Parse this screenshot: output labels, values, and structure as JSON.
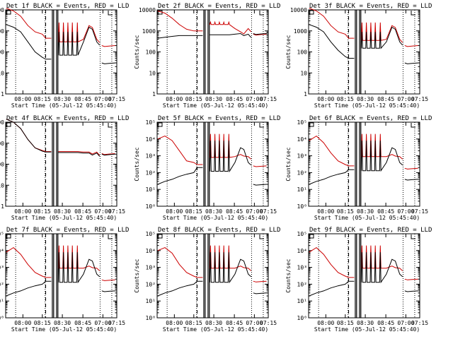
{
  "figure": {
    "background": "#ffffff",
    "colors": {
      "events": "#000000",
      "lld": "#cc0000",
      "axis": "#000000"
    },
    "x_tick_labels": [
      "08:00",
      "08:15",
      "08:30",
      "08:45",
      "07:00",
      "07:15"
    ],
    "xlabel": "Start Time (05-Jul-12 05:45:40)",
    "ylabel": "Counts/sec"
  },
  "chart_data": [
    {
      "type": "line",
      "title": "Det 1f BLACK = Events, RED = LLD",
      "y_axis": "A",
      "ylim": [
        1,
        10000
      ],
      "log_y": true,
      "yticks": [
        "1",
        "10",
        "100",
        "1000",
        "10000"
      ],
      "events_profile": {
        "pre": [
          2000,
          1500,
          900,
          300,
          100,
          55
        ],
        "dip": 45,
        "base": 70,
        "spike": 900,
        "mid": 300,
        "hump": 1500,
        "tail": 30
      },
      "lld_profile": {
        "pre": [
          12000,
          9000,
          5000,
          1800,
          900,
          700
        ],
        "dip": 450,
        "base": 300,
        "spike": 2500,
        "mid": 400,
        "hump": 1800,
        "tail": 200
      }
    },
    {
      "type": "line",
      "title": "Det 2f BLACK = Events, RED = LLD",
      "y_axis": "A",
      "ylim": [
        1,
        10000
      ],
      "log_y": true,
      "yticks": [
        "1",
        "10",
        "100",
        "1000",
        "10000"
      ],
      "events_profile": {
        "pre": [
          450,
          500,
          550,
          600,
          600,
          600
        ],
        "dip": 600,
        "base": 650,
        "spike": 650,
        "mid": 700,
        "hump": 750,
        "tail": 750
      },
      "lld_profile": {
        "pre": [
          9000,
          7000,
          4000,
          2000,
          1200,
          1000
        ],
        "dip": 1000,
        "base": 2000,
        "spike": 2600,
        "mid": 1300,
        "hump": 900,
        "tail": 700
      }
    },
    {
      "type": "line",
      "title": "Det 3f BLACK = Events, RED = LLD",
      "y_axis": "A",
      "ylim": [
        1,
        10000
      ],
      "log_y": true,
      "yticks": [
        "1",
        "10",
        "100",
        "1000",
        "10000"
      ],
      "events_profile": {
        "pre": [
          2000,
          1500,
          900,
          300,
          120,
          60
        ],
        "dip": 50,
        "base": 150,
        "spike": 900,
        "mid": 300,
        "hump": 1500,
        "tail": 30
      },
      "lld_profile": {
        "pre": [
          12000,
          9000,
          5000,
          1800,
          900,
          700
        ],
        "dip": 450,
        "base": 350,
        "spike": 2500,
        "mid": 400,
        "hump": 1800,
        "tail": 200
      }
    },
    {
      "type": "line",
      "title": "Det 4f BLACK = Events, RED = LLD",
      "y_axis": "A",
      "ylim": [
        1,
        10000
      ],
      "log_y": true,
      "yticks": [
        "1",
        "10",
        "100",
        "1000",
        "10000"
      ],
      "events_profile": {
        "pre": [
          14000,
          10000,
          5000,
          1500,
          600,
          420
        ],
        "dip": 380,
        "base": 360,
        "spike": 360,
        "mid": 340,
        "hump": 340,
        "tail": 300
      },
      "lld_profile": {
        "pre": [
          14000,
          10000,
          5000,
          1500,
          600,
          450
        ],
        "dip": 400,
        "base": 400,
        "spike": 400,
        "mid": 380,
        "hump": 380,
        "tail": 320
      }
    },
    {
      "type": "line",
      "title": "Det 5f BLACK = Events, RED = LLD",
      "y_axis": "B",
      "ylim": [
        1,
        100000
      ],
      "log_y": true,
      "yticks": [
        "10⁰",
        "10¹",
        "10²",
        "10³",
        "10⁴",
        "10⁵"
      ],
      "events_profile": {
        "pre": [
          20,
          30,
          40,
          60,
          80,
          100
        ],
        "dip": 200,
        "base": 120,
        "spike": 8000,
        "mid": 400,
        "hump": 3000,
        "tail": 20
      },
      "lld_profile": {
        "pre": [
          10000,
          15000,
          8000,
          2000,
          500,
          400
        ],
        "dip": 300,
        "base": 800,
        "spike": 20000,
        "mid": 900,
        "hump": 1200,
        "tail": 250
      }
    },
    {
      "type": "line",
      "title": "Det 6f BLACK = Events, RED = LLD",
      "y_axis": "B",
      "ylim": [
        1,
        100000
      ],
      "log_y": true,
      "yticks": [
        "10⁰",
        "10¹",
        "10²",
        "10³",
        "10⁴",
        "10⁵"
      ],
      "events_profile": {
        "pre": [
          20,
          30,
          40,
          60,
          80,
          100
        ],
        "dip": 150,
        "base": 130,
        "spike": 8000,
        "mid": 400,
        "hump": 3000,
        "tail": 40
      },
      "lld_profile": {
        "pre": [
          8000,
          15000,
          6000,
          1500,
          500,
          300
        ],
        "dip": 250,
        "base": 900,
        "spike": 20000,
        "mid": 900,
        "hump": 1200,
        "tail": 180
      }
    },
    {
      "type": "line",
      "title": "Det 7f BLACK = Events, RED = LLD",
      "y_axis": "B",
      "ylim": [
        1,
        100000
      ],
      "log_y": true,
      "yticks": [
        "10⁰",
        "10¹",
        "10²",
        "10³",
        "10⁴",
        "10⁵"
      ],
      "events_profile": {
        "pre": [
          20,
          30,
          40,
          60,
          80,
          100
        ],
        "dip": 150,
        "base": 130,
        "spike": 8000,
        "mid": 400,
        "hump": 3000,
        "tail": 40
      },
      "lld_profile": {
        "pre": [
          8000,
          15000,
          6000,
          1500,
          500,
          300
        ],
        "dip": 250,
        "base": 900,
        "spike": 20000,
        "mid": 900,
        "hump": 1200,
        "tail": 180
      }
    },
    {
      "type": "line",
      "title": "Det 8f BLACK = Events, RED = LLD",
      "y_axis": "B",
      "ylim": [
        1,
        100000
      ],
      "log_y": true,
      "yticks": [
        "10⁰",
        "10¹",
        "10²",
        "10³",
        "10⁴",
        "10⁵"
      ],
      "events_profile": {
        "pre": [
          20,
          30,
          40,
          60,
          80,
          100
        ],
        "dip": 150,
        "base": 130,
        "spike": 8000,
        "mid": 400,
        "hump": 3000,
        "tail": 30
      },
      "lld_profile": {
        "pre": [
          10000,
          15000,
          7000,
          1500,
          500,
          300
        ],
        "dip": 250,
        "base": 900,
        "spike": 20000,
        "mid": 900,
        "hump": 1200,
        "tail": 150
      }
    },
    {
      "type": "line",
      "title": "Det 9f BLACK = Events, RED = LLD",
      "y_axis": "B",
      "ylim": [
        1,
        100000
      ],
      "log_y": true,
      "yticks": [
        "10⁰",
        "10¹",
        "10²",
        "10³",
        "10⁴",
        "10⁵"
      ],
      "events_profile": {
        "pre": [
          20,
          30,
          40,
          60,
          80,
          100
        ],
        "dip": 150,
        "base": 130,
        "spike": 8000,
        "mid": 400,
        "hump": 3000,
        "tail": 40
      },
      "lld_profile": {
        "pre": [
          8000,
          15000,
          6000,
          1500,
          500,
          300
        ],
        "dip": 250,
        "base": 900,
        "spike": 20000,
        "mid": 900,
        "hump": 1200,
        "tail": 200
      }
    }
  ]
}
